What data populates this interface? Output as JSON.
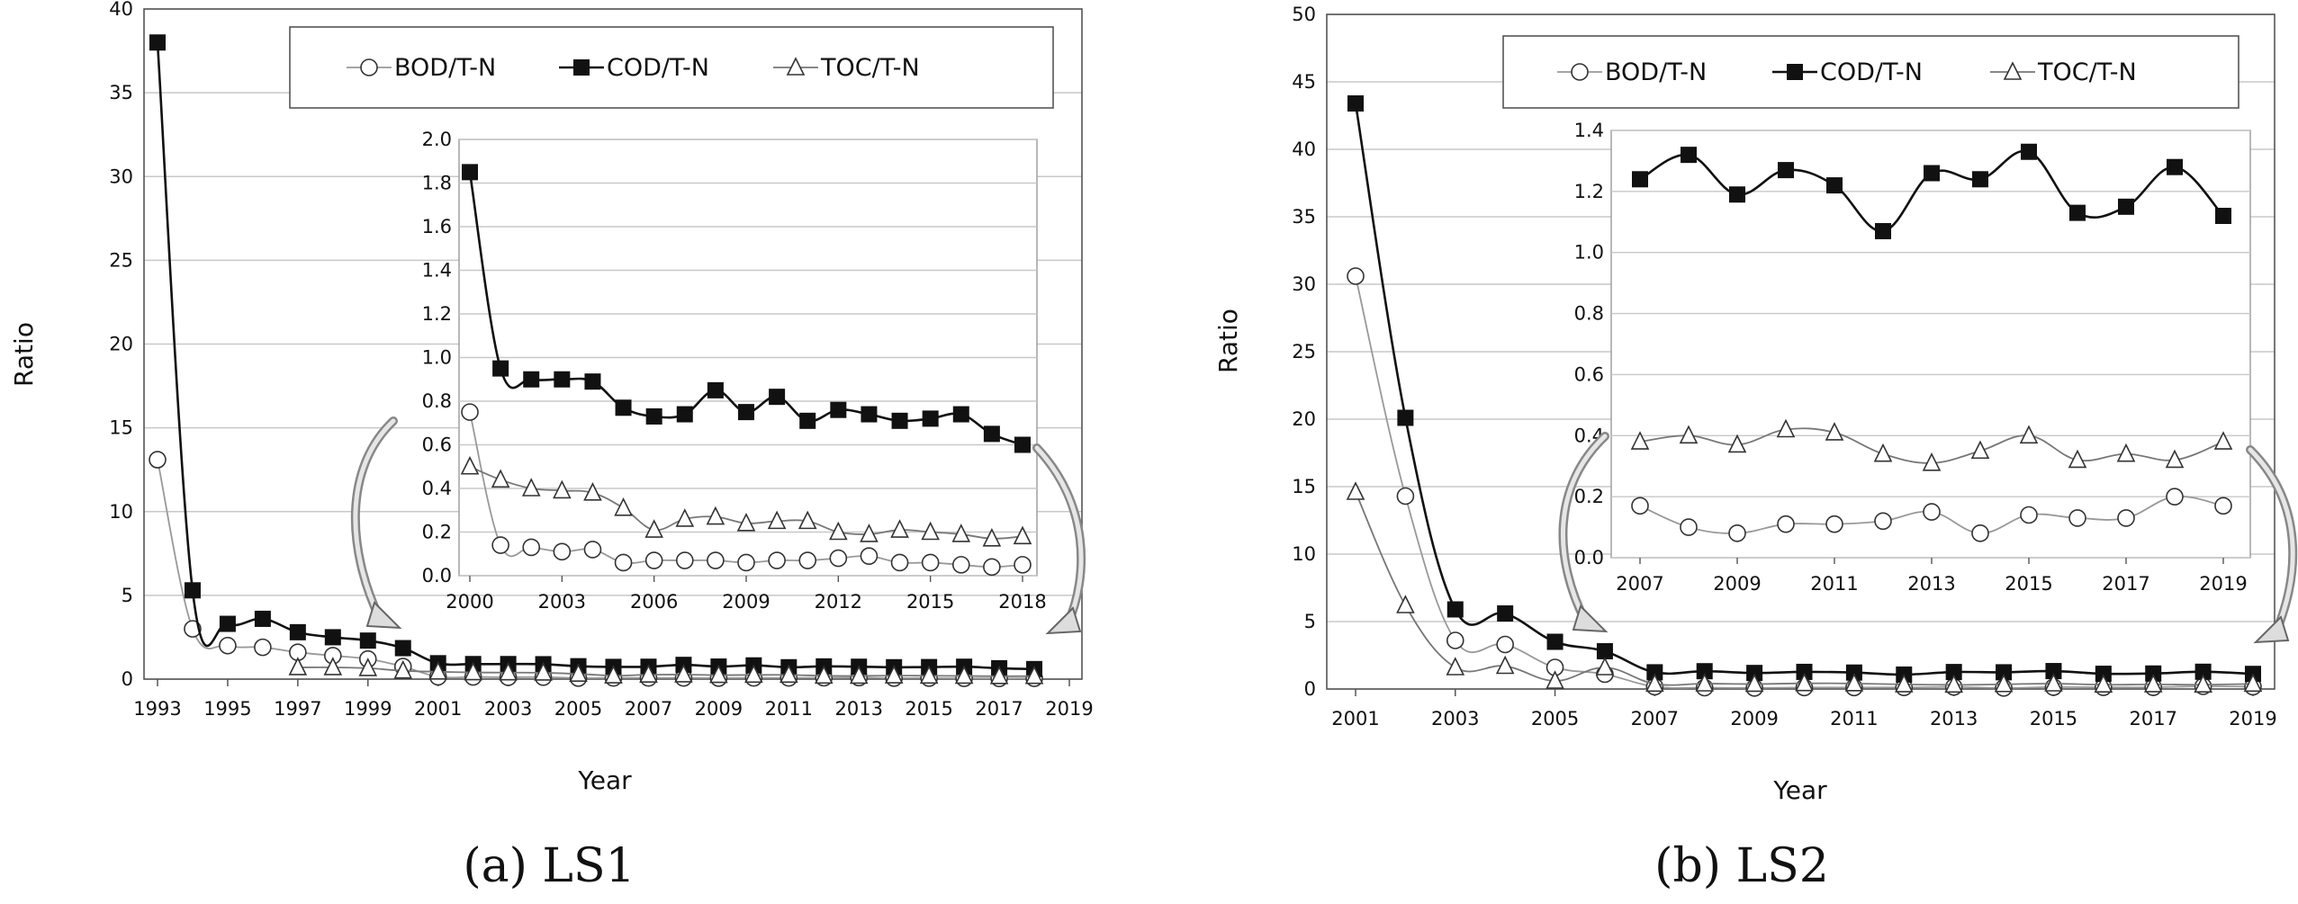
{
  "colors": {
    "bod": "#999999",
    "cod": "#111111",
    "toc": "#777777"
  },
  "chart_data": [
    {
      "type": "line",
      "caption": "(a) LS1",
      "xlabel": "Year",
      "ylabel": "Ratio",
      "ylim": [
        0,
        40
      ],
      "yticks": [
        "0",
        "5",
        "10",
        "15",
        "20",
        "25",
        "30",
        "35",
        "40"
      ],
      "xlim": [
        1992.5,
        2019
      ],
      "xticks": [
        "1993",
        "1995",
        "1997",
        "1999",
        "2001",
        "2003",
        "2005",
        "2007",
        "2009",
        "2011",
        "2013",
        "2015",
        "2017",
        "2019"
      ],
      "legend": [
        "BOD/T-N",
        "COD/T-N",
        "TOC/T-N"
      ],
      "series": [
        {
          "name": "BOD/T-N",
          "marker": "circle",
          "x": [
            1993,
            1994,
            1995,
            1996,
            1997,
            1998,
            1999,
            2000,
            2001,
            2002,
            2003,
            2004,
            2005,
            2006,
            2007,
            2008,
            2009,
            2010,
            2011,
            2012,
            2013,
            2014,
            2015,
            2016,
            2017,
            2018
          ],
          "values": [
            13.1,
            3.0,
            2.0,
            1.9,
            1.6,
            1.4,
            1.2,
            0.75,
            0.14,
            0.13,
            0.11,
            0.12,
            0.06,
            0.07,
            0.07,
            0.07,
            0.06,
            0.07,
            0.07,
            0.08,
            0.09,
            0.06,
            0.06,
            0.05,
            0.04,
            0.05
          ]
        },
        {
          "name": "COD/T-N",
          "marker": "square",
          "x": [
            1993,
            1994,
            1995,
            1996,
            1997,
            1998,
            1999,
            2000,
            2001,
            2002,
            2003,
            2004,
            2005,
            2006,
            2007,
            2008,
            2009,
            2010,
            2011,
            2012,
            2013,
            2014,
            2015,
            2016,
            2017,
            2018
          ],
          "values": [
            38.0,
            5.3,
            3.3,
            3.6,
            2.8,
            2.5,
            2.3,
            1.85,
            0.95,
            0.9,
            0.9,
            0.89,
            0.77,
            0.73,
            0.74,
            0.85,
            0.75,
            0.82,
            0.71,
            0.76,
            0.74,
            0.71,
            0.72,
            0.74,
            0.65,
            0.6
          ]
        },
        {
          "name": "TOC/T-N",
          "marker": "triangle",
          "x": [
            1997,
            1998,
            1999,
            2000,
            2001,
            2002,
            2003,
            2004,
            2005,
            2006,
            2007,
            2008,
            2009,
            2010,
            2011,
            2012,
            2013,
            2014,
            2015,
            2016,
            2017,
            2018
          ],
          "values": [
            0.7,
            0.7,
            0.65,
            0.5,
            0.44,
            0.4,
            0.39,
            0.38,
            0.31,
            0.21,
            0.26,
            0.27,
            0.24,
            0.25,
            0.25,
            0.2,
            0.19,
            0.21,
            0.2,
            0.19,
            0.17,
            0.18
          ]
        }
      ],
      "inset": {
        "xlim": [
          2000,
          2019
        ],
        "ylim": [
          0,
          2.0
        ],
        "yticks": [
          "0.0",
          "0.2",
          "0.4",
          "0.6",
          "0.8",
          "1.0",
          "1.2",
          "1.4",
          "1.6",
          "1.8",
          "2.0"
        ],
        "xticks": [
          "2000",
          "2003",
          "2006",
          "2009",
          "2012",
          "2015",
          "2018"
        ]
      }
    },
    {
      "type": "line",
      "caption": "(b) LS2",
      "xlabel": "Year",
      "ylabel": "Ratio",
      "ylim": [
        0,
        50
      ],
      "yticks": [
        "0",
        "5",
        "10",
        "15",
        "20",
        "25",
        "30",
        "35",
        "40",
        "45",
        "50"
      ],
      "xlim": [
        2000.5,
        2019
      ],
      "xticks": [
        "2001",
        "2003",
        "2005",
        "2007",
        "2009",
        "2011",
        "2013",
        "2015",
        "2017",
        "2019"
      ],
      "legend": [
        "BOD/T-N",
        "COD/T-N",
        "TOC/T-N"
      ],
      "series": [
        {
          "name": "BOD/T-N",
          "marker": "circle",
          "x": [
            2001,
            2002,
            2003,
            2004,
            2005,
            2006,
            2007,
            2008,
            2009,
            2010,
            2011,
            2012,
            2013,
            2014,
            2015,
            2016,
            2017,
            2018,
            2019
          ],
          "values": [
            30.6,
            14.3,
            3.6,
            3.3,
            1.6,
            1.1,
            0.17,
            0.1,
            0.08,
            0.11,
            0.11,
            0.12,
            0.15,
            0.08,
            0.14,
            0.13,
            0.13,
            0.2,
            0.17
          ]
        },
        {
          "name": "COD/T-N",
          "marker": "square",
          "x": [
            2001,
            2002,
            2003,
            2004,
            2005,
            2006,
            2007,
            2008,
            2009,
            2010,
            2011,
            2012,
            2013,
            2014,
            2015,
            2016,
            2017,
            2018,
            2019
          ],
          "values": [
            43.4,
            20.1,
            5.9,
            5.6,
            3.5,
            2.8,
            1.24,
            1.32,
            1.19,
            1.27,
            1.22,
            1.07,
            1.26,
            1.24,
            1.33,
            1.13,
            1.15,
            1.28,
            1.12
          ]
        },
        {
          "name": "TOC/T-N",
          "marker": "triangle",
          "x": [
            2001,
            2002,
            2003,
            2004,
            2005,
            2006,
            2007,
            2008,
            2009,
            2010,
            2011,
            2012,
            2013,
            2014,
            2015,
            2016,
            2017,
            2018,
            2019
          ],
          "values": [
            14.6,
            6.2,
            1.6,
            1.7,
            0.6,
            1.6,
            0.38,
            0.4,
            0.37,
            0.42,
            0.41,
            0.34,
            0.31,
            0.35,
            0.4,
            0.32,
            0.34,
            0.32,
            0.38
          ]
        }
      ],
      "inset": {
        "xlim": [
          2006.5,
          2019.5
        ],
        "ylim": [
          0,
          1.4
        ],
        "yticks": [
          "0.0",
          "0.2",
          "0.4",
          "0.6",
          "0.8",
          "1.0",
          "1.2",
          "1.4"
        ],
        "xticks": [
          "2007",
          "2009",
          "2011",
          "2013",
          "2015",
          "2017",
          "2019"
        ]
      }
    }
  ]
}
